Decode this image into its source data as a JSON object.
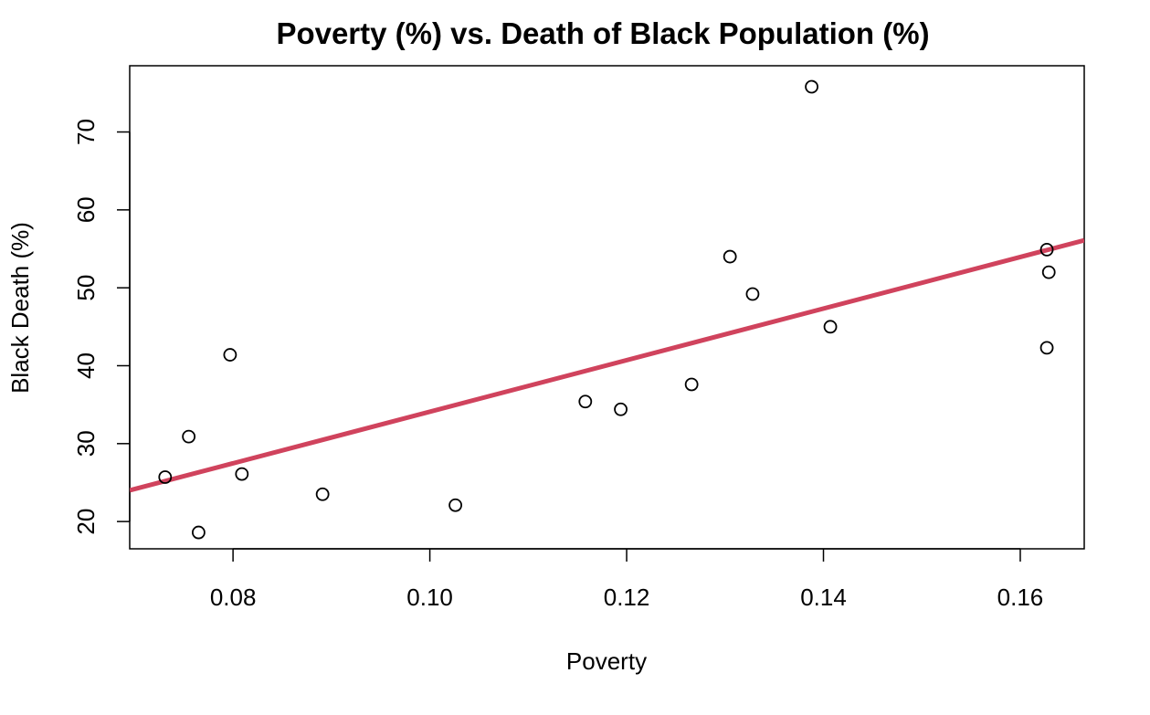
{
  "chart_data": {
    "type": "scatter",
    "title": "Poverty (%) vs. Death of Black Population (%)",
    "xlabel": "Poverty",
    "ylabel": "Black Death (%)",
    "xlim": [
      0.0695,
      0.1665
    ],
    "ylim": [
      16.5,
      78.5
    ],
    "x_ticks": [
      0.08,
      0.1,
      0.12,
      0.14,
      0.16
    ],
    "x_tick_labels": [
      "0.08",
      "0.10",
      "0.12",
      "0.14",
      "0.16"
    ],
    "y_ticks": [
      20,
      30,
      40,
      50,
      60,
      70
    ],
    "y_tick_labels": [
      "20",
      "30",
      "40",
      "50",
      "60",
      "70"
    ],
    "grid": false,
    "points": [
      {
        "x": 0.0731,
        "y": 25.7
      },
      {
        "x": 0.0755,
        "y": 30.9
      },
      {
        "x": 0.0765,
        "y": 18.6
      },
      {
        "x": 0.0797,
        "y": 41.4
      },
      {
        "x": 0.0809,
        "y": 26.1
      },
      {
        "x": 0.0891,
        "y": 23.5
      },
      {
        "x": 0.1026,
        "y": 22.1
      },
      {
        "x": 0.1158,
        "y": 35.4
      },
      {
        "x": 0.1194,
        "y": 34.4
      },
      {
        "x": 0.1266,
        "y": 37.6
      },
      {
        "x": 0.1305,
        "y": 54.0
      },
      {
        "x": 0.1328,
        "y": 49.2
      },
      {
        "x": 0.1388,
        "y": 75.8
      },
      {
        "x": 0.1407,
        "y": 45.0
      },
      {
        "x": 0.1627,
        "y": 54.9
      },
      {
        "x": 0.1627,
        "y": 42.3
      },
      {
        "x": 0.1629,
        "y": 52.0
      }
    ],
    "regression_line": {
      "x": [
        0.0695,
        0.1665
      ],
      "y": [
        24.0,
        56.1
      ],
      "color": "#d0435d"
    },
    "point_color": "#000000"
  }
}
